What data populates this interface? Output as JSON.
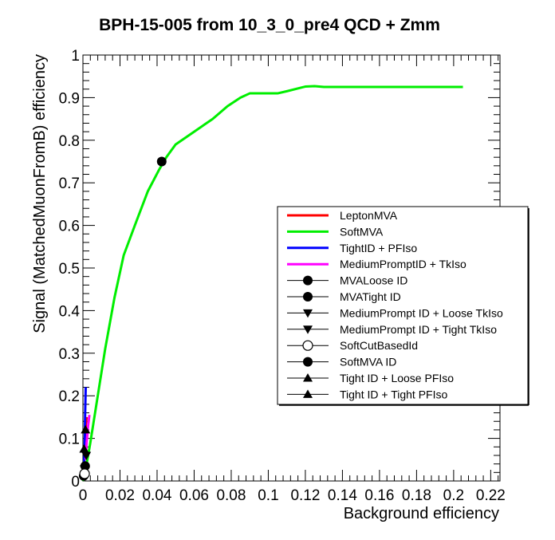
{
  "chart_data": {
    "type": "line",
    "title": "BPH-15-005 from 10_3_0_pre4 QCD + Zmm",
    "xlabel": "Background efficiency",
    "ylabel": "Signal (MatchedMuonFromB) efficiency",
    "xlim": [
      0,
      0.225
    ],
    "ylim": [
      0,
      1.0
    ],
    "x_ticks": [
      0,
      0.02,
      0.04,
      0.06,
      0.08,
      0.1,
      0.12,
      0.14,
      0.16,
      0.18,
      0.2,
      0.22
    ],
    "x_tick_labels": [
      "0",
      "0.02",
      "0.04",
      "0.06",
      "0.08",
      "0.1",
      "0.12",
      "0.14",
      "0.16",
      "0.18",
      "0.2",
      "0.22"
    ],
    "y_ticks": [
      0,
      0.1,
      0.2,
      0.3,
      0.4,
      0.5,
      0.6,
      0.7,
      0.8,
      0.9,
      1.0
    ],
    "y_tick_labels": [
      "0",
      "0.1",
      "0.2",
      "0.3",
      "0.4",
      "0.5",
      "0.6",
      "0.7",
      "0.8",
      "0.9",
      "1"
    ],
    "grid": false,
    "legend_position": "center-right",
    "series": [
      {
        "name": "LeptonMVA",
        "kind": "line",
        "color": "#ff0000",
        "x": [
          0.0005,
          0.001,
          0.0015,
          0.002
        ],
        "y": [
          0.02,
          0.07,
          0.13,
          0.15
        ]
      },
      {
        "name": "SoftMVA",
        "kind": "line",
        "color": "#00ee00",
        "x": [
          0.0,
          0.002,
          0.004,
          0.008,
          0.012,
          0.017,
          0.022,
          0.028,
          0.035,
          0.041,
          0.045,
          0.05,
          0.06,
          0.07,
          0.078,
          0.085,
          0.09,
          0.1,
          0.105,
          0.11,
          0.12,
          0.125,
          0.13,
          0.15,
          0.2,
          0.205
        ],
        "y": [
          0.0,
          0.04,
          0.09,
          0.2,
          0.31,
          0.43,
          0.53,
          0.6,
          0.68,
          0.73,
          0.76,
          0.79,
          0.82,
          0.85,
          0.88,
          0.9,
          0.91,
          0.91,
          0.91,
          0.915,
          0.926,
          0.927,
          0.925,
          0.925,
          0.925,
          0.925
        ]
      },
      {
        "name": "TightID + PFIso",
        "kind": "line",
        "color": "#0000ff",
        "x": [
          0.0005,
          0.0008,
          0.001,
          0.0012,
          0.0015
        ],
        "y": [
          0.03,
          0.06,
          0.1,
          0.16,
          0.22
        ]
      },
      {
        "name": "MediumPromptID + TkIso",
        "kind": "line",
        "color": "#ff00ff",
        "x": [
          0.0015,
          0.002,
          0.0028,
          0.0035
        ],
        "y": [
          0.05,
          0.09,
          0.13,
          0.155
        ]
      },
      {
        "name": "MVALoose ID",
        "kind": "marker",
        "marker": "filled-circle",
        "x": [
          0.0012
        ],
        "y": [
          0.035
        ]
      },
      {
        "name": "MVATight ID",
        "kind": "marker",
        "marker": "filled-circle",
        "x": [
          0.0004
        ],
        "y": [
          0.012
        ]
      },
      {
        "name": "MediumPrompt ID + Loose TkIso",
        "kind": "marker",
        "marker": "filled-triangle-down",
        "x": [
          0.0018
        ],
        "y": [
          0.06
        ]
      },
      {
        "name": "MediumPrompt ID + Tight TkIso",
        "kind": "marker",
        "marker": "filled-triangle-down",
        "x": [
          0.0008
        ],
        "y": [
          0.028
        ]
      },
      {
        "name": "SoftCutBasedId",
        "kind": "marker",
        "marker": "open-circle",
        "x": [
          0.0009
        ],
        "y": [
          0.017
        ]
      },
      {
        "name": "SoftMVA ID",
        "kind": "marker",
        "marker": "filled-circle",
        "x": [
          0.0425
        ],
        "y": [
          0.75
        ]
      },
      {
        "name": "Tight ID + Loose PFIso",
        "kind": "marker",
        "marker": "filled-triangle-up",
        "x": [
          0.0014
        ],
        "y": [
          0.12
        ]
      },
      {
        "name": "Tight ID + Tight PFIso",
        "kind": "marker",
        "marker": "filled-triangle-up",
        "x": [
          0.0006
        ],
        "y": [
          0.075
        ]
      }
    ]
  }
}
